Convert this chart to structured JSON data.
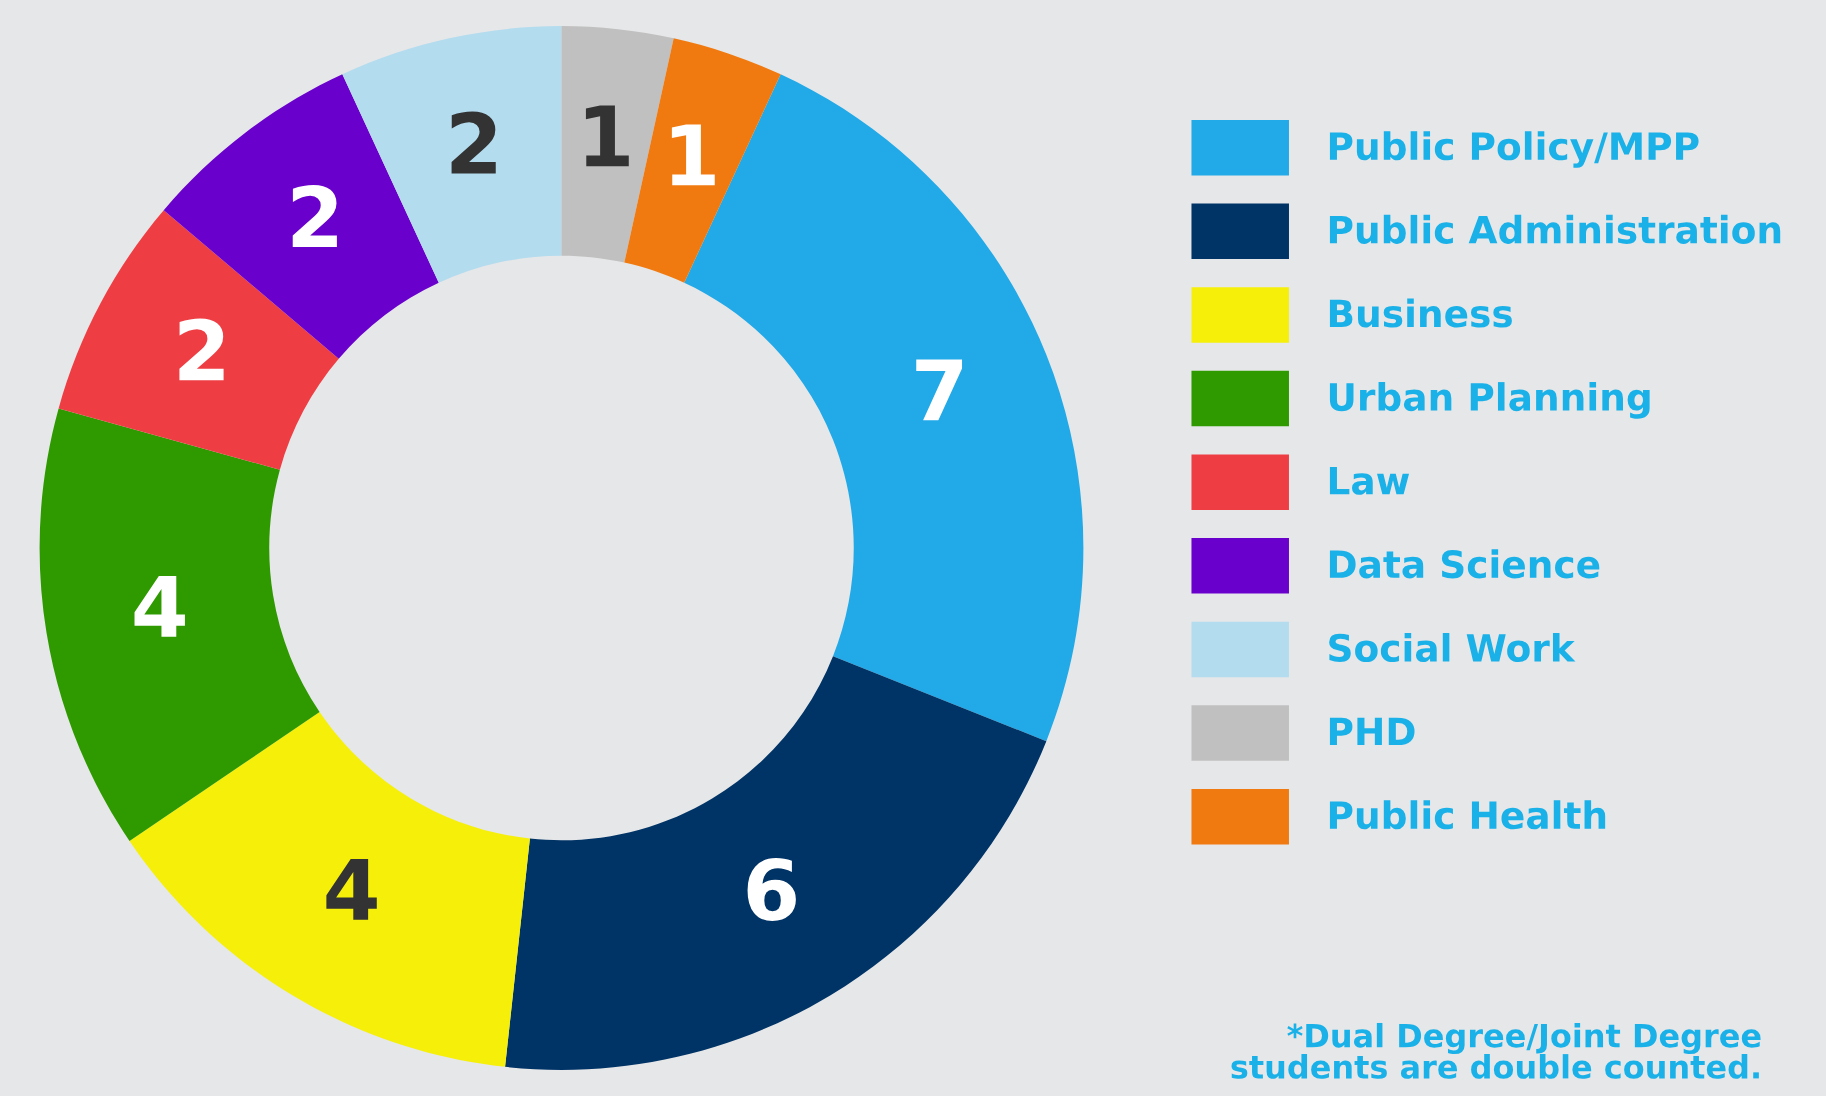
{
  "chart_data": {
    "type": "donut",
    "categories": [
      "Public Policy/MPP",
      "Public Administration",
      "Business",
      "Urban Planning",
      "Law",
      "Data Science",
      "Social Work",
      "PHD",
      "Public Health"
    ],
    "values": [
      7,
      6,
      4,
      4,
      2,
      2,
      2,
      1,
      1
    ],
    "colors": [
      "#22a9e8",
      "#003366",
      "#f5ef0a",
      "#2f9a00",
      "#ee3e44",
      "#6a00cc",
      "#b3dcef",
      "#c0c0c0",
      "#f07a10"
    ],
    "data_labels": true,
    "legend": "right",
    "annotations": [
      "*Dual Degree/Joint Degree\nstudents are double counted."
    ]
  }
}
